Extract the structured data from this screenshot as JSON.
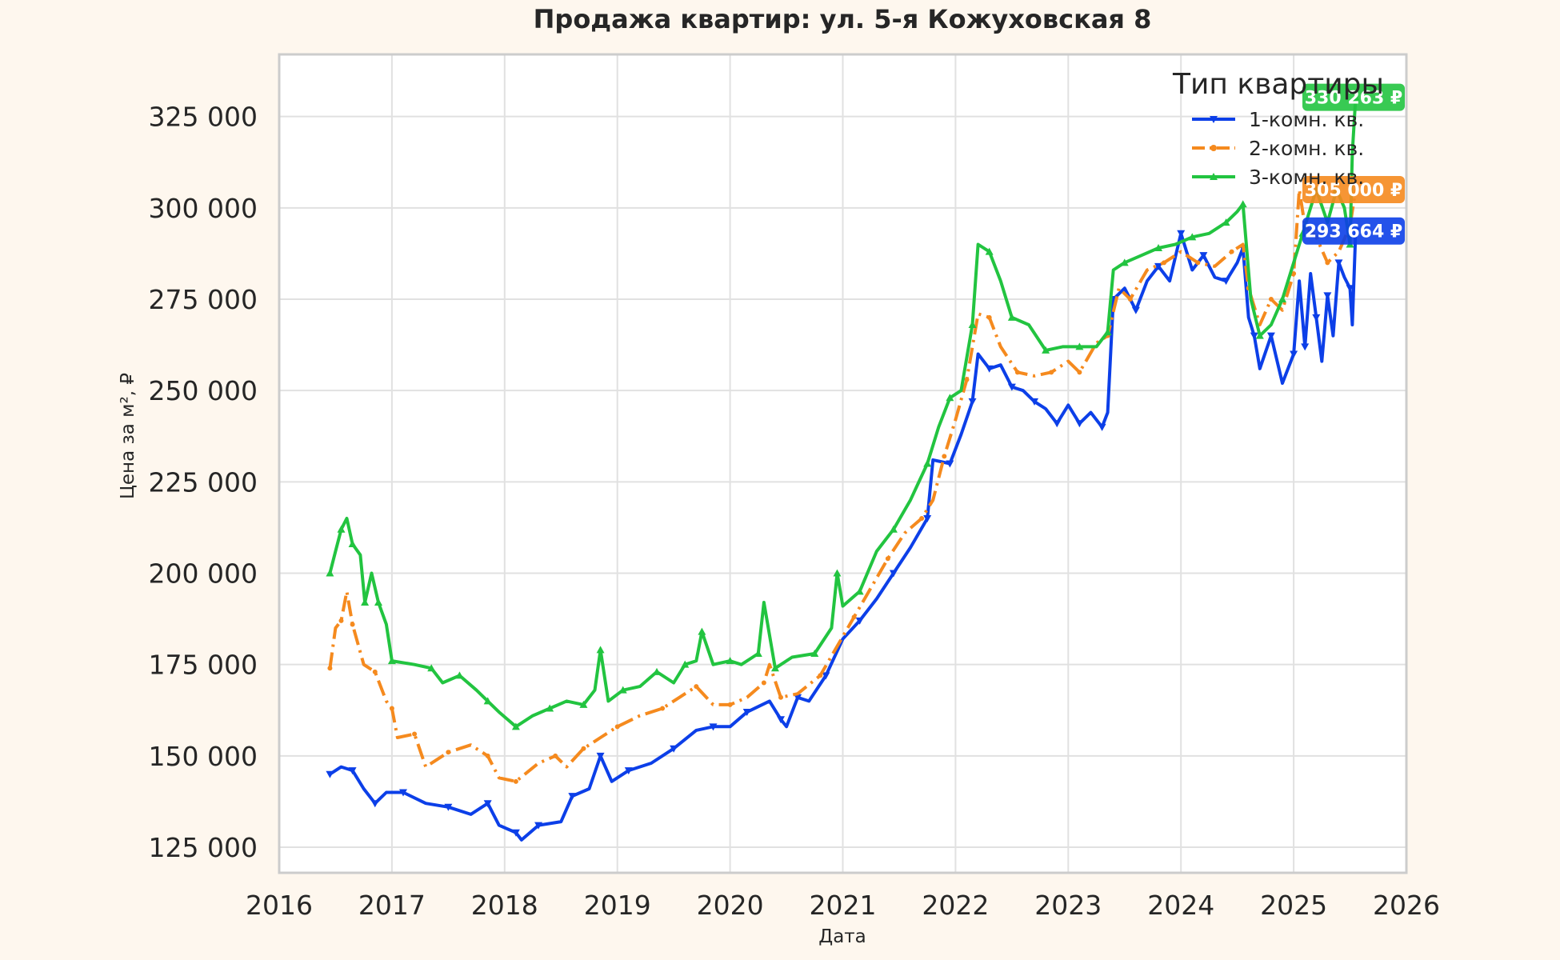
{
  "chart_data": {
    "type": "line",
    "title": "Продажа квартир: ул. 5-я Кожуховская 8",
    "xlabel": "Дата",
    "ylabel": "Цена за м², ₽",
    "xlim": [
      2016.0,
      2026.0
    ],
    "ylim": [
      118000,
      342000
    ],
    "x_ticks": [
      "2016",
      "2017",
      "2018",
      "2019",
      "2020",
      "2021",
      "2022",
      "2023",
      "2024",
      "2025",
      "2026"
    ],
    "y_ticks": [
      {
        "value": 125000,
        "label": "125 000"
      },
      {
        "value": 150000,
        "label": "150 000"
      },
      {
        "value": 175000,
        "label": "175 000"
      },
      {
        "value": 200000,
        "label": "200 000"
      },
      {
        "value": 225000,
        "label": "225 000"
      },
      {
        "value": 250000,
        "label": "250 000"
      },
      {
        "value": 275000,
        "label": "275 000"
      },
      {
        "value": 300000,
        "label": "300 000"
      },
      {
        "value": 325000,
        "label": "325 000"
      }
    ],
    "grid": true,
    "legend": {
      "title": "Тип квартиры",
      "position": "top-right"
    },
    "series": [
      {
        "name": "1-комн. кв.",
        "color": "#0c3fe8",
        "dash": "solid",
        "marker": "triangle-down",
        "end_label": "293 664 ₽",
        "points": [
          [
            2016.45,
            145000
          ],
          [
            2016.55,
            147000
          ],
          [
            2016.65,
            146000
          ],
          [
            2016.75,
            141000
          ],
          [
            2016.85,
            137000
          ],
          [
            2016.95,
            140000
          ],
          [
            2017.1,
            140000
          ],
          [
            2017.3,
            137000
          ],
          [
            2017.5,
            136000
          ],
          [
            2017.7,
            134000
          ],
          [
            2017.85,
            137000
          ],
          [
            2017.95,
            131000
          ],
          [
            2018.1,
            129000
          ],
          [
            2018.15,
            127000
          ],
          [
            2018.3,
            131000
          ],
          [
            2018.5,
            132000
          ],
          [
            2018.6,
            139000
          ],
          [
            2018.75,
            141000
          ],
          [
            2018.85,
            150000
          ],
          [
            2018.95,
            143000
          ],
          [
            2019.1,
            146000
          ],
          [
            2019.3,
            148000
          ],
          [
            2019.5,
            152000
          ],
          [
            2019.7,
            157000
          ],
          [
            2019.85,
            158000
          ],
          [
            2020.0,
            158000
          ],
          [
            2020.15,
            162000
          ],
          [
            2020.35,
            165000
          ],
          [
            2020.45,
            160000
          ],
          [
            2020.5,
            158000
          ],
          [
            2020.6,
            166000
          ],
          [
            2020.7,
            165000
          ],
          [
            2020.85,
            172000
          ],
          [
            2021.0,
            182000
          ],
          [
            2021.15,
            187000
          ],
          [
            2021.3,
            193000
          ],
          [
            2021.45,
            200000
          ],
          [
            2021.6,
            207000
          ],
          [
            2021.75,
            215000
          ],
          [
            2021.8,
            231000
          ],
          [
            2021.95,
            230000
          ],
          [
            2022.05,
            238000
          ],
          [
            2022.15,
            247000
          ],
          [
            2022.2,
            260000
          ],
          [
            2022.3,
            256000
          ],
          [
            2022.4,
            257000
          ],
          [
            2022.5,
            251000
          ],
          [
            2022.6,
            250000
          ],
          [
            2022.7,
            247000
          ],
          [
            2022.8,
            245000
          ],
          [
            2022.9,
            241000
          ],
          [
            2023.0,
            246000
          ],
          [
            2023.1,
            241000
          ],
          [
            2023.2,
            244000
          ],
          [
            2023.3,
            240000
          ],
          [
            2023.35,
            244000
          ],
          [
            2023.4,
            275000
          ],
          [
            2023.5,
            278000
          ],
          [
            2023.6,
            272000
          ],
          [
            2023.7,
            280000
          ],
          [
            2023.8,
            284000
          ],
          [
            2023.9,
            280000
          ],
          [
            2024.0,
            293000
          ],
          [
            2024.1,
            283000
          ],
          [
            2024.2,
            287000
          ],
          [
            2024.3,
            281000
          ],
          [
            2024.4,
            280000
          ],
          [
            2024.5,
            285000
          ],
          [
            2024.55,
            289000
          ],
          [
            2024.6,
            270000
          ],
          [
            2024.65,
            265000
          ],
          [
            2024.7,
            256000
          ],
          [
            2024.8,
            265000
          ],
          [
            2024.9,
            252000
          ],
          [
            2025.0,
            260000
          ],
          [
            2025.05,
            280000
          ],
          [
            2025.1,
            262000
          ],
          [
            2025.15,
            282000
          ],
          [
            2025.2,
            270000
          ],
          [
            2025.25,
            258000
          ],
          [
            2025.3,
            276000
          ],
          [
            2025.35,
            265000
          ],
          [
            2025.4,
            285000
          ],
          [
            2025.45,
            281000
          ],
          [
            2025.5,
            278000
          ],
          [
            2025.52,
            268000
          ],
          [
            2025.55,
            293664
          ]
        ]
      },
      {
        "name": "2-комн. кв.",
        "color": "#f58a1e",
        "dash": "dashdot",
        "marker": "circle",
        "end_label": "305 000 ₽",
        "points": [
          [
            2016.45,
            174000
          ],
          [
            2016.5,
            185000
          ],
          [
            2016.55,
            187000
          ],
          [
            2016.6,
            195000
          ],
          [
            2016.65,
            186000
          ],
          [
            2016.75,
            175000
          ],
          [
            2016.85,
            173000
          ],
          [
            2016.95,
            165000
          ],
          [
            2017.0,
            163000
          ],
          [
            2017.05,
            155000
          ],
          [
            2017.2,
            156000
          ],
          [
            2017.3,
            147000
          ],
          [
            2017.5,
            151000
          ],
          [
            2017.7,
            153000
          ],
          [
            2017.85,
            150000
          ],
          [
            2017.95,
            144000
          ],
          [
            2018.1,
            143000
          ],
          [
            2018.3,
            148000
          ],
          [
            2018.45,
            150000
          ],
          [
            2018.55,
            147000
          ],
          [
            2018.7,
            152000
          ],
          [
            2018.85,
            155000
          ],
          [
            2019.0,
            158000
          ],
          [
            2019.2,
            161000
          ],
          [
            2019.4,
            163000
          ],
          [
            2019.55,
            166000
          ],
          [
            2019.7,
            169000
          ],
          [
            2019.85,
            164000
          ],
          [
            2020.0,
            164000
          ],
          [
            2020.15,
            166000
          ],
          [
            2020.3,
            170000
          ],
          [
            2020.35,
            175000
          ],
          [
            2020.45,
            166000
          ],
          [
            2020.6,
            167000
          ],
          [
            2020.8,
            172000
          ],
          [
            2020.95,
            180000
          ],
          [
            2021.1,
            188000
          ],
          [
            2021.25,
            196000
          ],
          [
            2021.4,
            204000
          ],
          [
            2021.55,
            211000
          ],
          [
            2021.7,
            215000
          ],
          [
            2021.8,
            220000
          ],
          [
            2021.9,
            232000
          ],
          [
            2022.0,
            242000
          ],
          [
            2022.1,
            253000
          ],
          [
            2022.2,
            271000
          ],
          [
            2022.3,
            270000
          ],
          [
            2022.4,
            262000
          ],
          [
            2022.55,
            255000
          ],
          [
            2022.7,
            254000
          ],
          [
            2022.85,
            255000
          ],
          [
            2023.0,
            258000
          ],
          [
            2023.1,
            255000
          ],
          [
            2023.25,
            263000
          ],
          [
            2023.35,
            265000
          ],
          [
            2023.45,
            278000
          ],
          [
            2023.55,
            275000
          ],
          [
            2023.7,
            283000
          ],
          [
            2023.85,
            285000
          ],
          [
            2024.0,
            288000
          ],
          [
            2024.15,
            285000
          ],
          [
            2024.3,
            284000
          ],
          [
            2024.45,
            288000
          ],
          [
            2024.55,
            290000
          ],
          [
            2024.6,
            278000
          ],
          [
            2024.7,
            268000
          ],
          [
            2024.8,
            275000
          ],
          [
            2024.9,
            272000
          ],
          [
            2025.0,
            282000
          ],
          [
            2025.05,
            305000
          ],
          [
            2025.1,
            295000
          ],
          [
            2025.2,
            292000
          ],
          [
            2025.3,
            285000
          ],
          [
            2025.4,
            288000
          ],
          [
            2025.5,
            295000
          ],
          [
            2025.55,
            305000
          ]
        ]
      },
      {
        "name": "3-комн. кв.",
        "color": "#22c440",
        "dash": "solid",
        "marker": "triangle-up",
        "end_label": "330 263 ₽",
        "points": [
          [
            2016.45,
            200000
          ],
          [
            2016.5,
            206000
          ],
          [
            2016.55,
            212000
          ],
          [
            2016.6,
            215000
          ],
          [
            2016.65,
            208000
          ],
          [
            2016.72,
            205000
          ],
          [
            2016.76,
            192000
          ],
          [
            2016.82,
            200000
          ],
          [
            2016.88,
            192000
          ],
          [
            2016.95,
            186000
          ],
          [
            2017.0,
            176000
          ],
          [
            2017.2,
            175000
          ],
          [
            2017.35,
            174000
          ],
          [
            2017.45,
            170000
          ],
          [
            2017.6,
            172000
          ],
          [
            2017.75,
            168000
          ],
          [
            2017.85,
            165000
          ],
          [
            2017.95,
            162000
          ],
          [
            2018.1,
            158000
          ],
          [
            2018.25,
            161000
          ],
          [
            2018.4,
            163000
          ],
          [
            2018.55,
            165000
          ],
          [
            2018.7,
            164000
          ],
          [
            2018.8,
            168000
          ],
          [
            2018.85,
            179000
          ],
          [
            2018.92,
            165000
          ],
          [
            2019.05,
            168000
          ],
          [
            2019.2,
            169000
          ],
          [
            2019.35,
            173000
          ],
          [
            2019.5,
            170000
          ],
          [
            2019.6,
            175000
          ],
          [
            2019.7,
            176000
          ],
          [
            2019.75,
            184000
          ],
          [
            2019.85,
            175000
          ],
          [
            2020.0,
            176000
          ],
          [
            2020.1,
            175000
          ],
          [
            2020.25,
            178000
          ],
          [
            2020.3,
            192000
          ],
          [
            2020.4,
            174000
          ],
          [
            2020.55,
            177000
          ],
          [
            2020.75,
            178000
          ],
          [
            2020.9,
            185000
          ],
          [
            2020.95,
            200000
          ],
          [
            2021.0,
            191000
          ],
          [
            2021.15,
            195000
          ],
          [
            2021.3,
            206000
          ],
          [
            2021.45,
            212000
          ],
          [
            2021.6,
            220000
          ],
          [
            2021.75,
            230000
          ],
          [
            2021.85,
            240000
          ],
          [
            2021.95,
            248000
          ],
          [
            2022.05,
            250000
          ],
          [
            2022.15,
            268000
          ],
          [
            2022.2,
            290000
          ],
          [
            2022.3,
            288000
          ],
          [
            2022.4,
            280000
          ],
          [
            2022.5,
            270000
          ],
          [
            2022.65,
            268000
          ],
          [
            2022.8,
            261000
          ],
          [
            2022.95,
            262000
          ],
          [
            2023.1,
            262000
          ],
          [
            2023.25,
            262000
          ],
          [
            2023.35,
            266000
          ],
          [
            2023.4,
            283000
          ],
          [
            2023.5,
            285000
          ],
          [
            2023.65,
            287000
          ],
          [
            2023.8,
            289000
          ],
          [
            2023.95,
            290000
          ],
          [
            2024.1,
            292000
          ],
          [
            2024.25,
            293000
          ],
          [
            2024.4,
            296000
          ],
          [
            2024.5,
            299000
          ],
          [
            2024.55,
            301000
          ],
          [
            2024.62,
            275000
          ],
          [
            2024.7,
            265000
          ],
          [
            2024.8,
            268000
          ],
          [
            2024.9,
            275000
          ],
          [
            2025.0,
            285000
          ],
          [
            2025.08,
            293000
          ],
          [
            2025.15,
            300000
          ],
          [
            2025.2,
            305000
          ],
          [
            2025.3,
            296000
          ],
          [
            2025.38,
            305000
          ],
          [
            2025.45,
            300000
          ],
          [
            2025.5,
            290000
          ],
          [
            2025.52,
            315000
          ],
          [
            2025.55,
            330263
          ]
        ]
      }
    ]
  }
}
